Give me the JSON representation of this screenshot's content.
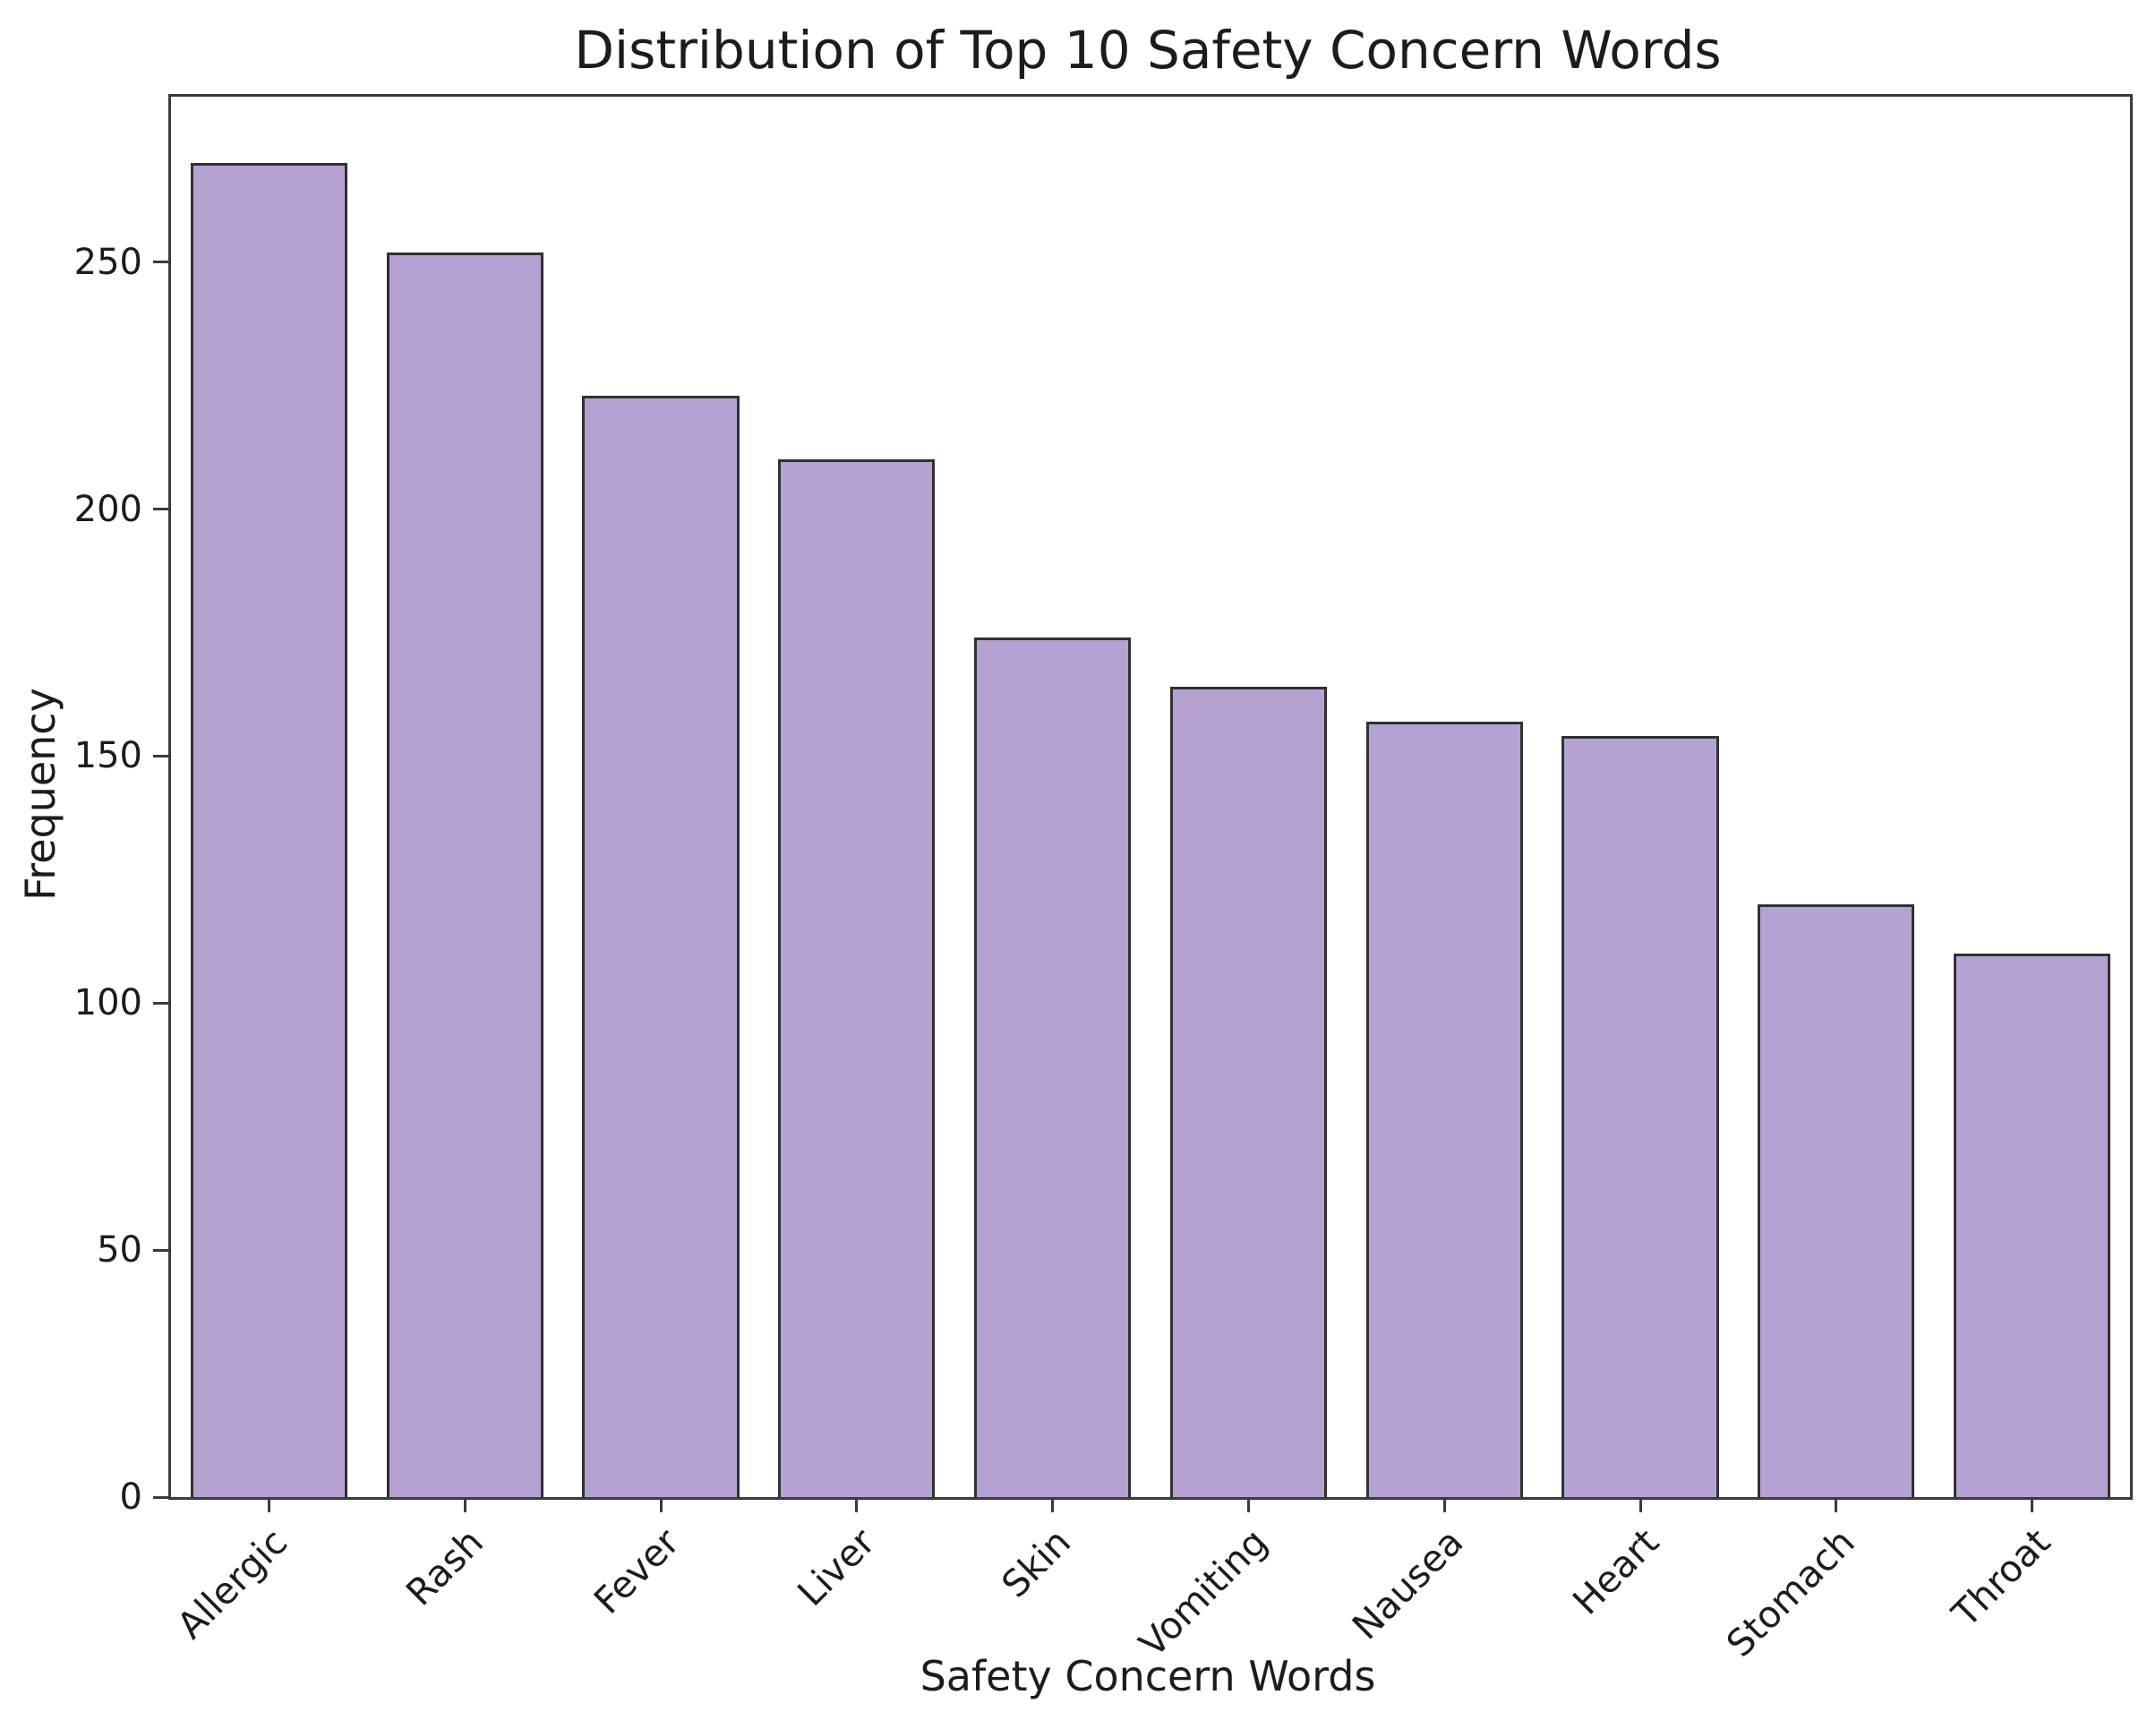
{
  "chart_data": {
    "type": "bar",
    "title": "Distribution of Top 10 Safety Concern Words",
    "xlabel": "Safety Concern Words",
    "ylabel": "Frequency",
    "categories": [
      "Allergic",
      "Rash",
      "Fever",
      "Liver",
      "Skin",
      "Vomiting",
      "Nausea",
      "Heart",
      "Stomach",
      "Throat"
    ],
    "values": [
      270,
      252,
      223,
      210,
      174,
      164,
      157,
      154,
      120,
      110
    ],
    "yticks": [
      0,
      50,
      100,
      150,
      200,
      250
    ],
    "ylim": [
      0,
      283.5
    ],
    "bar_width_fraction": 0.8,
    "grid": false,
    "legend": "none",
    "bar_fill_color": "#b5a2d3",
    "bar_edge_color": "#313131",
    "axis_color": "#3b3b3b",
    "text_color": "#1c1c1c"
  }
}
